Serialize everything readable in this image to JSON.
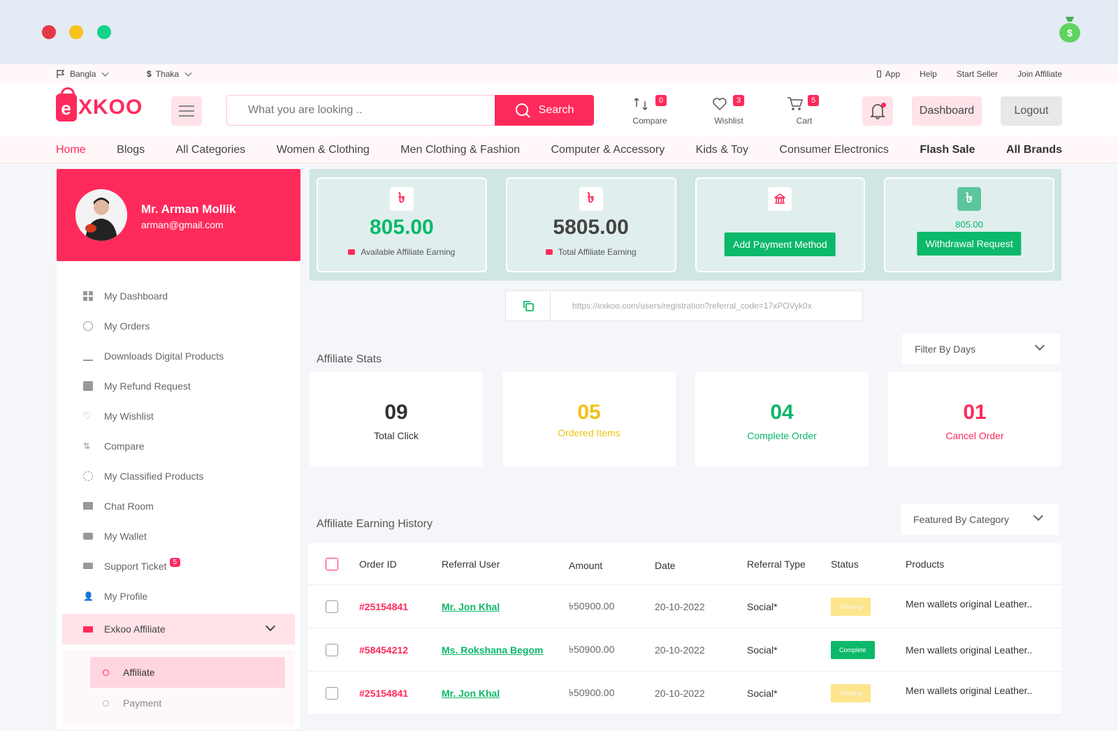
{
  "topbar": {
    "language": "Bangla",
    "currency": "Thaka",
    "links": [
      "App",
      "Help",
      "Start Seller",
      "Join Affiliate"
    ]
  },
  "header": {
    "logo_text": "XKOO",
    "logo_letter": "e",
    "search_placeholder": "What you are looking ..",
    "search_button": "Search",
    "compare": {
      "label": "Compare",
      "count": "0"
    },
    "wishlist": {
      "label": "Wishlist",
      "count": "3"
    },
    "cart": {
      "label": "Cart",
      "count": "5"
    },
    "dashboard_button": "Dashboard",
    "logout_button": "Logout"
  },
  "nav": [
    "Home",
    "Blogs",
    "All Categories",
    "Women & Clothing",
    "Men Clothing & Fashion",
    "Computer & Accessory",
    "Kids & Toy",
    "Consumer Electronics",
    "Flash Sale",
    "All Brands"
  ],
  "profile": {
    "name": "Mr. Arman Mollik",
    "email": "arman@gmail.com"
  },
  "sidebar": {
    "items": [
      "My Dashboard",
      "My Orders",
      "Downloads Digital Products",
      "My Refund Request",
      "My Wishlist",
      "Compare",
      "My Classified Products",
      "Chat Room",
      "My Wallet",
      "Support Ticket",
      "My Profile"
    ],
    "support_badge": "5",
    "expanded": "Exkoo Affiliate",
    "submenu": [
      "Affiliate",
      "Payment"
    ]
  },
  "cards": {
    "available": {
      "amount": "805.00",
      "label": "Available Affiliate Earning",
      "icon": "৳"
    },
    "total": {
      "amount": "5805.00",
      "label": "Total Affiliate Earning",
      "icon": "৳"
    },
    "payment_button": "Add Payment Method",
    "withdraw_amount": "805.00",
    "withdraw_button": "Withdrawal Request",
    "withdraw_icon": "৳"
  },
  "referral_url": "https://exkoo.com/users/registration?referral_code=17xPOVyk0x",
  "stats_title": "Affiliate Stats",
  "filter_days": "Filter By Days",
  "stats": [
    {
      "n": "09",
      "l": "Total Click",
      "color": "#333333"
    },
    {
      "n": "05",
      "l": "Ordered Items",
      "color": "#f2c216"
    },
    {
      "n": "04",
      "l": "Complete Order",
      "color": "#0cb86a"
    },
    {
      "n": "01",
      "l": "Cancel Order",
      "color": "#ff2a5c"
    }
  ],
  "history_title": "Affiliate Earning History",
  "featured_filter": "Featured By Category",
  "table": {
    "headers": [
      "Order ID",
      "Referral User",
      "Amount",
      "Date",
      "Referral Type",
      "Status",
      "Products"
    ],
    "rows": [
      {
        "id": "#25154841",
        "user": "Mr. Jon Khal",
        "amount": "৳50900.00",
        "date": "20-10-2022",
        "type": "Social*",
        "status": "Pending",
        "product": "Men wallets original Leather.."
      },
      {
        "id": "#58454212",
        "user": "Ms. Rokshana Begom",
        "amount": "৳50900.00",
        "date": "20-10-2022",
        "type": "Social*",
        "status": "Complete",
        "product": "Men wallets original Leather.."
      },
      {
        "id": "#25154841",
        "user": "Mr. Jon Khal",
        "amount": "৳50900.00",
        "date": "20-10-2022",
        "type": "Social*",
        "status": "Pending",
        "product": "Men wallets original Leather.."
      }
    ]
  },
  "colors": {
    "accent": "#ff2a5c",
    "green": "#0cb86a",
    "pending": "#fde58c"
  }
}
